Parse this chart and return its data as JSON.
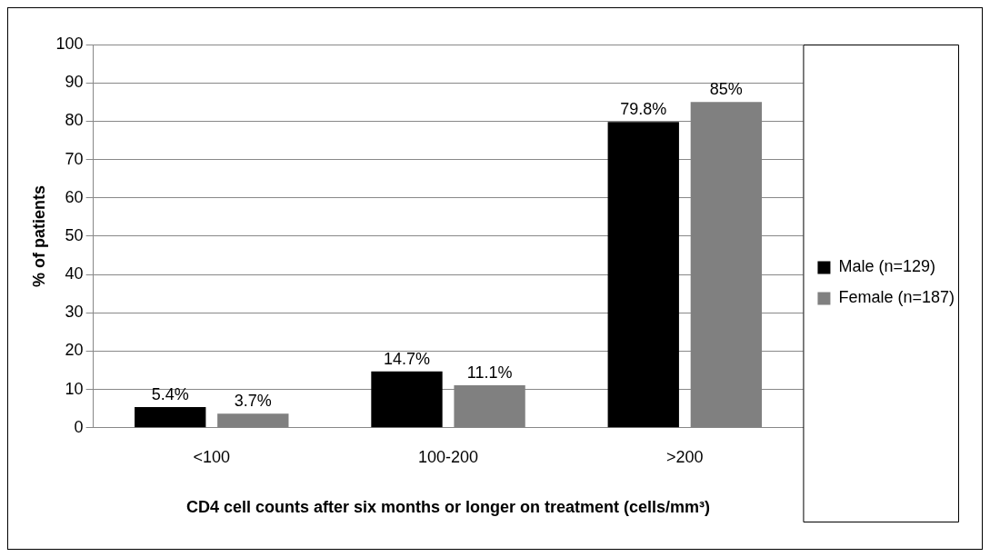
{
  "chart_data": {
    "type": "bar",
    "categories": [
      "<100",
      "100-200",
      ">200"
    ],
    "series": [
      {
        "name": "Male (n=129)",
        "color": "#000000",
        "values": [
          5.4,
          14.7,
          79.8
        ],
        "value_labels": [
          "5.4%",
          "14.7%",
          "79.8%"
        ]
      },
      {
        "name": "Female (n=187)",
        "color": "#808080",
        "values": [
          3.7,
          11.1,
          85
        ],
        "value_labels": [
          "3.7%",
          "11.1%",
          "85%"
        ]
      }
    ],
    "xlabel": "CD4 cell counts after six months or longer on treatment (cells/mm³)",
    "ylabel": "% of patients",
    "ylim": [
      0,
      100
    ],
    "yticks": [
      0,
      10,
      20,
      30,
      40,
      50,
      60,
      70,
      80,
      90,
      100
    ],
    "grid": "y",
    "legend": "right"
  }
}
